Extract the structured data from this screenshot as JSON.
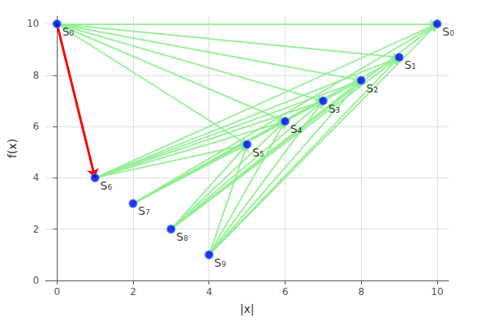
{
  "chart_data": {
    "type": "scatter",
    "title": "",
    "xlabel": "|x|",
    "ylabel": "f(x)",
    "xlim": [
      -0.3,
      10.3
    ],
    "ylim": [
      0,
      10.3
    ],
    "xticks": [
      0,
      2,
      4,
      6,
      8,
      10
    ],
    "yticks": [
      0,
      2,
      4,
      6,
      8,
      10
    ],
    "grid": true,
    "series": [
      {
        "type": "scatter",
        "color": "#0000ee",
        "x": [
          0,
          1,
          2,
          3,
          4
        ],
        "values": [
          10,
          4,
          3,
          2,
          1
        ],
        "labels": [
          "S₀",
          "S₆",
          "S₇",
          "S₈",
          "S₉"
        ]
      },
      {
        "type": "scatter",
        "color": "#0000ee",
        "x": [
          10,
          9,
          8,
          7,
          6,
          5
        ],
        "values": [
          10,
          8.7,
          7.8,
          7.0,
          6.2,
          5.3
        ],
        "labels": [
          "S₀",
          "S₁",
          "S₂",
          "S₃",
          "S₄",
          "S₅"
        ]
      }
    ],
    "arrows": [
      {
        "color": "#90EE90",
        "segments": [
          [
            [
              0,
              10
            ],
            [
              10,
              10
            ]
          ],
          [
            [
              0,
              10
            ],
            [
              9,
              8.7
            ]
          ],
          [
            [
              0,
              10
            ],
            [
              8,
              7.8
            ]
          ],
          [
            [
              0,
              10
            ],
            [
              7,
              7.0
            ]
          ],
          [
            [
              0,
              10
            ],
            [
              6,
              6.2
            ]
          ],
          [
            [
              0,
              10
            ],
            [
              5,
              5.3
            ]
          ],
          [
            [
              1,
              4
            ],
            [
              10,
              10
            ]
          ],
          [
            [
              1,
              4
            ],
            [
              9,
              8.7
            ]
          ],
          [
            [
              1,
              4
            ],
            [
              8,
              7.8
            ]
          ],
          [
            [
              1,
              4
            ],
            [
              7,
              7.0
            ]
          ],
          [
            [
              1,
              4
            ],
            [
              6,
              6.2
            ]
          ],
          [
            [
              1,
              4
            ],
            [
              5,
              5.3
            ]
          ],
          [
            [
              2,
              3
            ],
            [
              10,
              10
            ]
          ],
          [
            [
              2,
              3
            ],
            [
              9,
              8.7
            ]
          ],
          [
            [
              2,
              3
            ],
            [
              8,
              7.8
            ]
          ],
          [
            [
              2,
              3
            ],
            [
              7,
              7.0
            ]
          ],
          [
            [
              2,
              3
            ],
            [
              6,
              6.2
            ]
          ],
          [
            [
              2,
              3
            ],
            [
              5,
              5.3
            ]
          ],
          [
            [
              3,
              2
            ],
            [
              10,
              10
            ]
          ],
          [
            [
              3,
              2
            ],
            [
              9,
              8.7
            ]
          ],
          [
            [
              3,
              2
            ],
            [
              8,
              7.8
            ]
          ],
          [
            [
              3,
              2
            ],
            [
              7,
              7.0
            ]
          ],
          [
            [
              3,
              2
            ],
            [
              6,
              6.2
            ]
          ],
          [
            [
              3,
              2
            ],
            [
              5,
              5.3
            ]
          ],
          [
            [
              4,
              1
            ],
            [
              10,
              10
            ]
          ],
          [
            [
              4,
              1
            ],
            [
              9,
              8.7
            ]
          ],
          [
            [
              4,
              1
            ],
            [
              8,
              7.8
            ]
          ],
          [
            [
              4,
              1
            ],
            [
              7,
              7.0
            ]
          ],
          [
            [
              4,
              1
            ],
            [
              6,
              6.2
            ]
          ],
          [
            [
              4,
              1
            ],
            [
              5,
              5.3
            ]
          ]
        ]
      },
      {
        "color": "#ff0000",
        "segments": [
          [
            [
              0,
              10
            ],
            [
              1,
              4
            ]
          ]
        ]
      }
    ]
  }
}
